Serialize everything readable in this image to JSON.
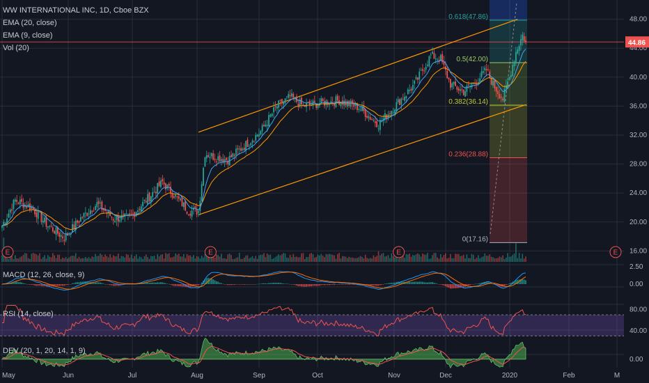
{
  "header": {
    "symbol_line": "WW INTERNATIONAL INC, 1D, Cboe BZX",
    "ema20": "EMA (20, close)",
    "ema9": "EMA (9, close)",
    "vol": "Vol (20)"
  },
  "panes": {
    "macd_label": "MACD (12, 26, close, 9)",
    "rsi_label": "RSI (14, close)",
    "dev_label": "DEV (20, 1, 20, 14, 1, 9)"
  },
  "colors": {
    "background": "#131722",
    "grid": "#2a2e39",
    "up": "#26a69a",
    "down": "#ef5350",
    "ema20": "#ff9800",
    "ema9": "#42a5f5",
    "channel": "#ff9800",
    "price_line": "#ef5350"
  },
  "chart_data": [
    {
      "type": "candlestick",
      "title": "WW INTERNATIONAL INC, 1D, Cboe BZX",
      "x_ticks": [
        "May",
        "Jun",
        "Jul",
        "Aug",
        "Sep",
        "Oct",
        "Nov",
        "Dec",
        "2020",
        "Feb",
        "M"
      ],
      "y_ticks": [
        16.0,
        20.0,
        24.0,
        28.0,
        32.0,
        36.0,
        40.0,
        44.0,
        48.0
      ],
      "ylim": [
        14.5,
        49.5
      ],
      "last_price": 44.86,
      "last_price_label": "44.86",
      "earnings_marker": "E",
      "close_anchors": [
        [
          0,
          19.5
        ],
        [
          8,
          23.0
        ],
        [
          18,
          22.0
        ],
        [
          28,
          19.5
        ],
        [
          38,
          17.8
        ],
        [
          48,
          20.5
        ],
        [
          58,
          22.5
        ],
        [
          68,
          20.5
        ],
        [
          78,
          20.6
        ],
        [
          88,
          23.0
        ],
        [
          98,
          25.5
        ],
        [
          108,
          23.0
        ],
        [
          114,
          21.5
        ],
        [
          120,
          21.5
        ],
        [
          124,
          29.5
        ],
        [
          130,
          29.0
        ],
        [
          138,
          28.6
        ],
        [
          148,
          30.5
        ],
        [
          158,
          32.5
        ],
        [
          168,
          36.0
        ],
        [
          176,
          37.3
        ],
        [
          184,
          36.0
        ],
        [
          196,
          36.5
        ],
        [
          206,
          36.8
        ],
        [
          218,
          35.8
        ],
        [
          230,
          33.5
        ],
        [
          240,
          36.0
        ],
        [
          252,
          39.0
        ],
        [
          262,
          43.0
        ],
        [
          268,
          42.5
        ],
        [
          274,
          39.0
        ],
        [
          282,
          38.0
        ],
        [
          290,
          39.5
        ],
        [
          296,
          41.0
        ],
        [
          300,
          39.0
        ],
        [
          306,
          37.0
        ],
        [
          310,
          40.0
        ],
        [
          314,
          43.5
        ],
        [
          318,
          45.8
        ],
        [
          320,
          44.86
        ]
      ],
      "volume_spikes": [
        [
          1,
          3.5
        ],
        [
          124,
          2.8
        ],
        [
          230,
          3.2
        ],
        [
          314,
          4.5
        ]
      ],
      "channel": {
        "upper": [
          [
            120,
            32.4
          ],
          [
            315,
            48.0
          ]
        ],
        "lower": [
          [
            120,
            21.0
          ],
          [
            320,
            36.2
          ]
        ]
      },
      "fibonacci": {
        "levels": [
          {
            "ratio": "0.618",
            "value": 47.86,
            "label": "0.618(47.86)",
            "color": "#26a69a"
          },
          {
            "ratio": "0.5",
            "value": 42.0,
            "label": "0.5(42.00)",
            "color": "#9ccc65"
          },
          {
            "ratio": "0.382",
            "value": 36.14,
            "label": "0.382(36.14)",
            "color": "#c0ca33"
          },
          {
            "ratio": "0.236",
            "value": 28.88,
            "label": "0.236(28.88)",
            "color": "#ef5350"
          },
          {
            "ratio": "0",
            "value": 17.16,
            "label": "0(17.16)",
            "color": "#b2b5be"
          }
        ]
      },
      "earnings_positions": [
        0,
        124,
        239,
        380
      ]
    },
    {
      "type": "line",
      "title": "MACD (12, 26, close, 9)",
      "y_ticks": [
        2.5,
        0.0
      ],
      "ylim": [
        -2.2,
        2.8
      ]
    },
    {
      "type": "line",
      "title": "RSI (14, close)",
      "y_ticks": [
        80.0,
        40.0
      ],
      "ylim": [
        20,
        90
      ],
      "bands": [
        70,
        30
      ]
    },
    {
      "type": "area",
      "title": "DEV (20, 1, 20, 14, 1, 9)",
      "y_ticks": [
        0.0
      ],
      "ylim": [
        -0.6,
        1.4
      ]
    }
  ]
}
